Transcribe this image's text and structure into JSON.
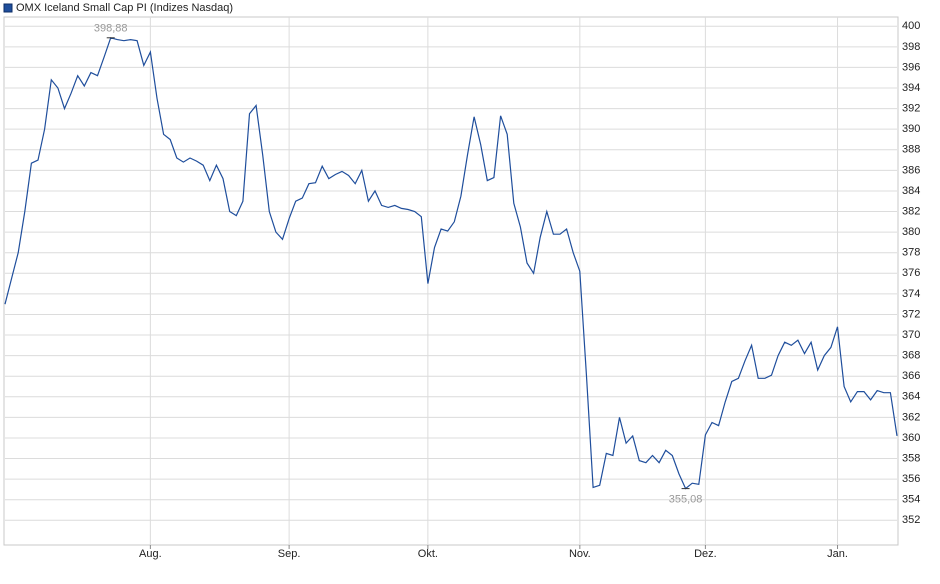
{
  "chart_data": {
    "type": "line",
    "series": [
      {
        "name": "OMX Iceland Small Cap PI  (Indizes Nasdaq)",
        "color": "#1f4e9c",
        "values": [
          373,
          375.5,
          378,
          382,
          386.7,
          387,
          390,
          394.8,
          394,
          392,
          393.5,
          395.2,
          394.2,
          395.5,
          395.2,
          397,
          398.88,
          398.7,
          398.6,
          398.7,
          398.6,
          396.2,
          397.5,
          393,
          389.5,
          389,
          387.2,
          386.8,
          387.2,
          386.9,
          386.5,
          385,
          386.5,
          385.2,
          382,
          381.6,
          383,
          391.5,
          392.3,
          387.5,
          382,
          380,
          379.3,
          381.3,
          383,
          383.3,
          384.7,
          384.8,
          386.4,
          385.2,
          385.6,
          385.9,
          385.5,
          384.7,
          386,
          383,
          384,
          382.6,
          382.4,
          382.6,
          382.3,
          382.2,
          382,
          381.5,
          375,
          378.5,
          380.3,
          380.1,
          381,
          383.5,
          387.5,
          391.2,
          388.5,
          385,
          385.3,
          391.3,
          389.5,
          382.8,
          380.5,
          377,
          376,
          379.5,
          382,
          379.8,
          379.8,
          380.3,
          378,
          376.2,
          366,
          355.2,
          355.4,
          358.5,
          358.3,
          362,
          359.5,
          360.2,
          357.8,
          357.6,
          358.3,
          357.6,
          358.8,
          358.3,
          356.5,
          355.08,
          355.6,
          355.5,
          360.3,
          361.5,
          361.2,
          363.5,
          365.5,
          365.8,
          367.5,
          369,
          365.8,
          365.8,
          366.1,
          368,
          369.3,
          369,
          369.5,
          368.2,
          369.3,
          366.6,
          368,
          368.8,
          370.8,
          365,
          363.5,
          364.5,
          364.5,
          363.7,
          364.6,
          364.4,
          364.4,
          360.2
        ]
      }
    ],
    "categories": [
      null,
      null,
      null,
      null,
      null,
      null,
      null,
      null,
      null,
      null,
      null,
      null,
      null,
      null,
      null,
      null,
      null,
      null,
      null,
      null,
      null,
      null,
      "Aug.",
      null,
      null,
      null,
      null,
      null,
      null,
      null,
      null,
      null,
      null,
      null,
      null,
      null,
      null,
      null,
      null,
      null,
      null,
      null,
      null,
      "Sep.",
      null,
      null,
      null,
      null,
      null,
      null,
      null,
      null,
      null,
      null,
      null,
      null,
      null,
      null,
      null,
      null,
      null,
      null,
      null,
      null,
      "Okt.",
      null,
      null,
      null,
      null,
      null,
      null,
      null,
      null,
      null,
      null,
      null,
      null,
      null,
      null,
      null,
      null,
      null,
      null,
      null,
      null,
      null,
      null,
      "Nov.",
      null,
      null,
      null,
      null,
      null,
      null,
      null,
      null,
      null,
      null,
      null,
      null,
      null,
      null,
      null,
      null,
      null,
      null,
      "Dez.",
      null,
      null,
      null,
      null,
      null,
      null,
      null,
      null,
      null,
      null,
      null,
      null,
      null,
      null,
      null,
      null,
      null,
      null,
      null,
      "Jan.",
      null,
      null,
      null,
      null,
      null,
      null,
      null,
      null,
      null
    ],
    "annotations": [
      {
        "text": "398,88",
        "value": 398.88
      },
      {
        "text": "355,08",
        "value": 355.08
      }
    ],
    "ylim": [
      349.6,
      400.9
    ],
    "yticks": [
      352,
      354,
      356,
      358,
      360,
      362,
      364,
      366,
      368,
      370,
      372,
      374,
      376,
      378,
      380,
      382,
      384,
      386,
      388,
      390,
      392,
      394,
      396,
      398,
      400
    ],
    "grid": true
  }
}
